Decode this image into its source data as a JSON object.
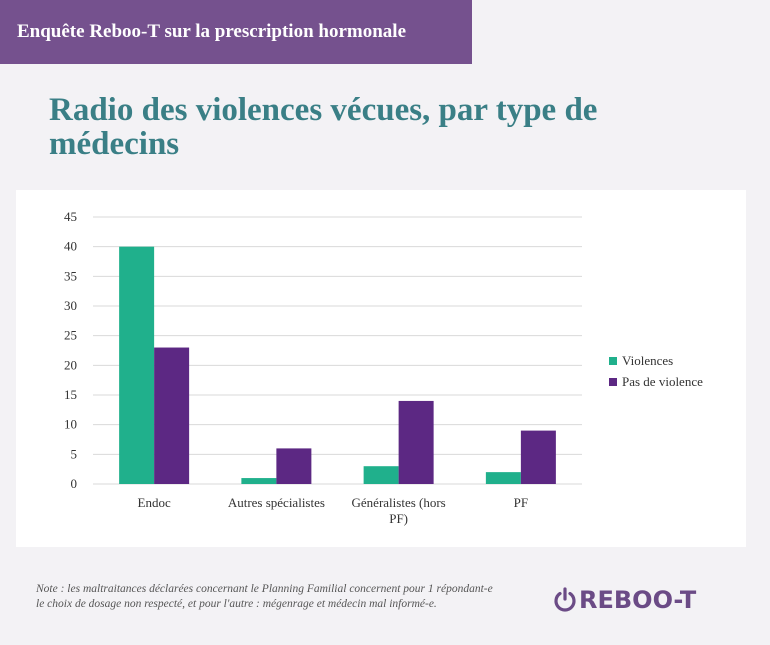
{
  "header": {
    "banner_text": "Enquête Reboo-T sur la prescription hormonale"
  },
  "title": "Radio des violences vécues, par type de médecins",
  "chart_data": {
    "type": "bar",
    "categories": [
      "Endoc",
      "Autres spécialistes",
      "Généralistes (hors PF)",
      "PF"
    ],
    "category_lines": [
      [
        "Endoc"
      ],
      [
        "Autres spécialistes"
      ],
      [
        "Généralistes (hors",
        "PF)"
      ],
      [
        "PF"
      ]
    ],
    "series": [
      {
        "name": "Violences",
        "values": [
          40,
          1,
          3,
          2
        ],
        "color": "#20b08c"
      },
      {
        "name": "Pas de violence",
        "values": [
          23,
          6,
          14,
          9
        ],
        "color": "#5c2883"
      }
    ],
    "ylim": [
      0,
      45
    ],
    "yticks": [
      0,
      5,
      10,
      15,
      20,
      25,
      30,
      35,
      40,
      45
    ],
    "grid": true,
    "legend_position": "right"
  },
  "note": "Note : les maltraitances déclarées concernant le Planning Familial concernent pour 1 répondant-e le choix de dosage non respecté, et pour l'autre : mégenrage et médecin mal informé-e.",
  "logo": {
    "text": "REBOO-T",
    "icon": "power-icon",
    "color": "#6b4b86"
  }
}
